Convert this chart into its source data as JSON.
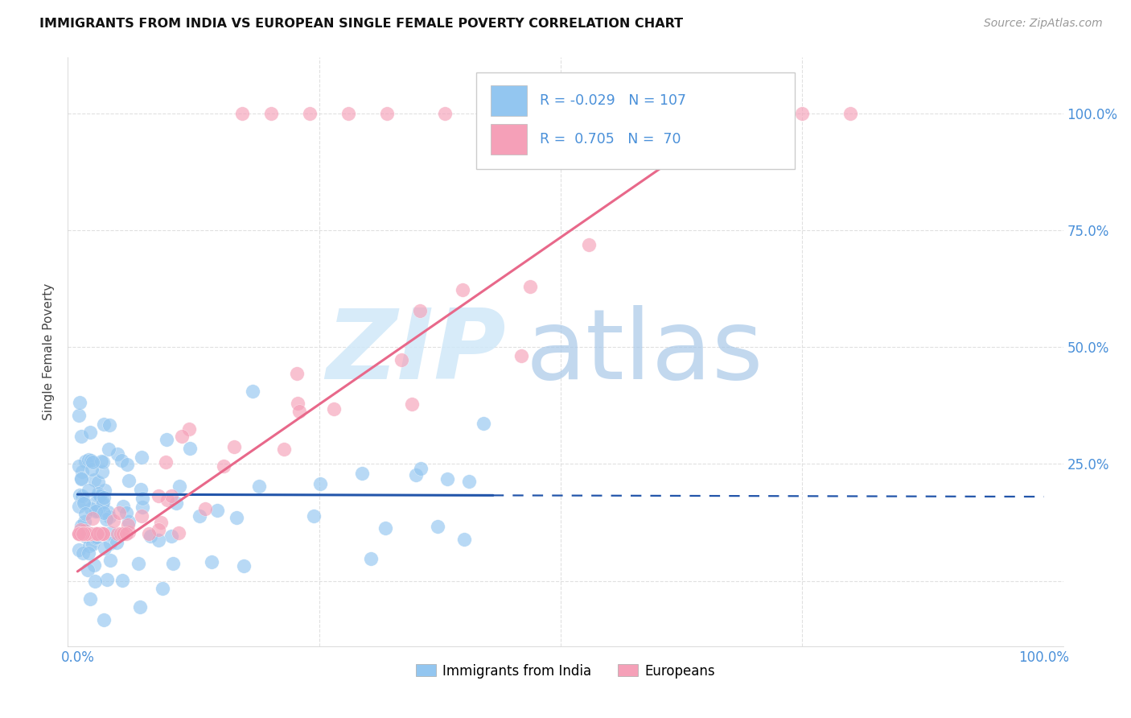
{
  "title": "IMMIGRANTS FROM INDIA VS EUROPEAN SINGLE FEMALE POVERTY CORRELATION CHART",
  "source": "Source: ZipAtlas.com",
  "ylabel": "Single Female Poverty",
  "r1": "-0.029",
  "n1": "107",
  "r2": "0.705",
  "n2": "70",
  "color_blue": "#93C6F0",
  "color_pink": "#F5A0B8",
  "color_line_blue": "#2255AA",
  "color_line_pink": "#E8688A",
  "color_axis": "#4A90D9",
  "watermark_zip_color": "#D0E8F8",
  "watermark_atlas_color": "#A8C8E8",
  "background_color": "#FFFFFF",
  "grid_color": "#DDDDDD",
  "legend_label1": "Immigrants from India",
  "legend_label2": "Europeans"
}
